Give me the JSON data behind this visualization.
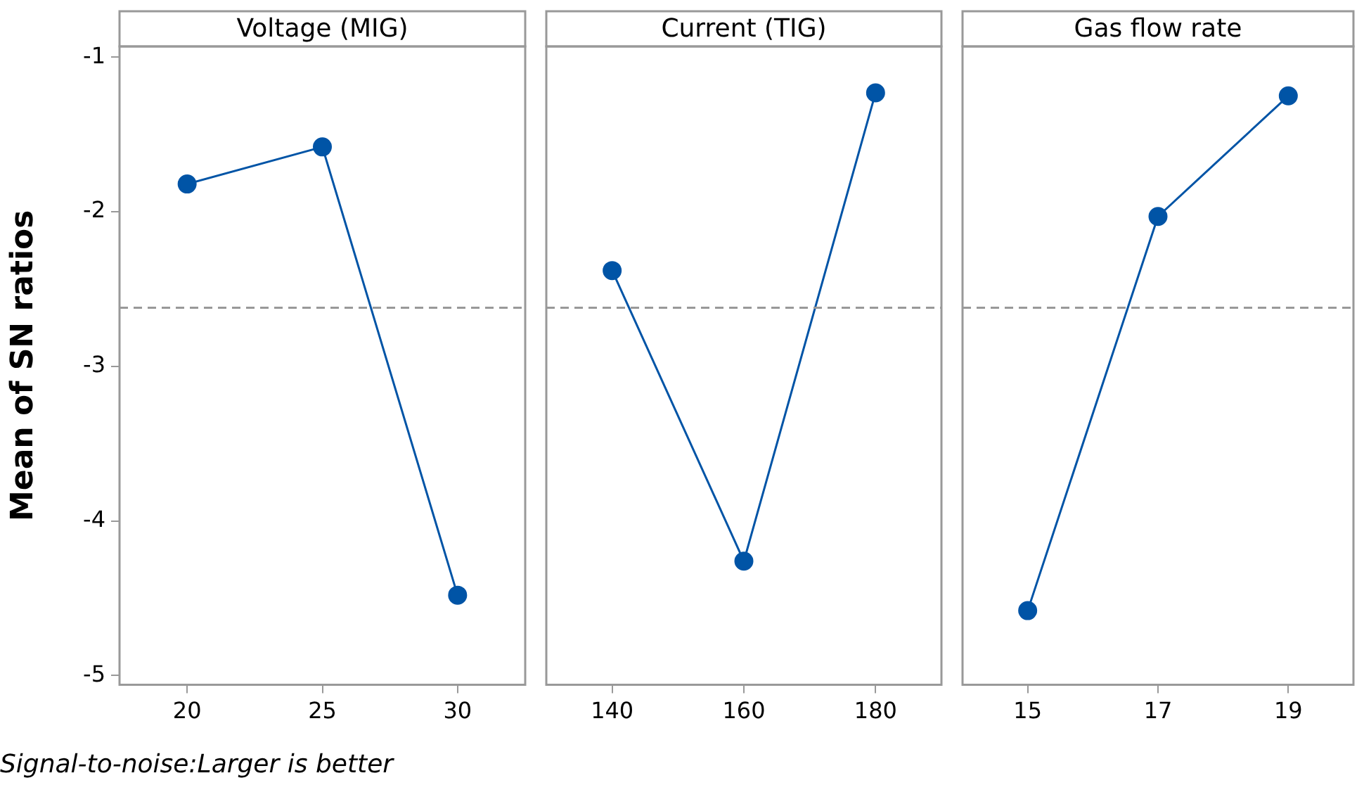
{
  "chart_data": [
    {
      "type": "line",
      "title": "Voltage (MIG)",
      "ylabel": "Mean of SN ratios",
      "categories": [
        "20",
        "25",
        "30"
      ],
      "values": [
        -1.82,
        -1.58,
        -4.48
      ],
      "color": "#0054a6",
      "marker": "circle",
      "ylim": [
        -5.06,
        -0.93
      ],
      "yticks": [
        -5,
        -4,
        -3,
        -2,
        -1
      ],
      "ref_lines": [
        {
          "axis": "y",
          "value": -2.62,
          "color": "#999999",
          "line_style": "dashed"
        }
      ],
      "annotations": [
        "Signal-to-noise:Larger is better"
      ]
    },
    {
      "type": "line",
      "title": "Current (TIG)",
      "categories": [
        "140",
        "160",
        "180"
      ],
      "values": [
        -2.38,
        -4.26,
        -1.23
      ],
      "color": "#0054a6",
      "marker": "circle",
      "ylim": [
        -5.06,
        -0.93
      ],
      "yticks": [
        -5,
        -4,
        -3,
        -2,
        -1
      ],
      "tick_labels": "x",
      "ref_lines": [
        {
          "axis": "y",
          "value": -2.62,
          "color": "#999999",
          "line_style": "dashed"
        }
      ]
    },
    {
      "type": "line",
      "title": "Gas flow rate",
      "categories": [
        "15",
        "17",
        "19"
      ],
      "values": [
        -4.58,
        -2.03,
        -1.25
      ],
      "color": "#0054a6",
      "marker": "circle",
      "ylim": [
        -5.06,
        -0.93
      ],
      "yticks": [
        -5,
        -4,
        -3,
        -2,
        -1
      ],
      "tick_labels": "x",
      "ref_lines": [
        {
          "axis": "y",
          "value": -2.62,
          "color": "#999999",
          "line_style": "dashed"
        }
      ]
    }
  ]
}
